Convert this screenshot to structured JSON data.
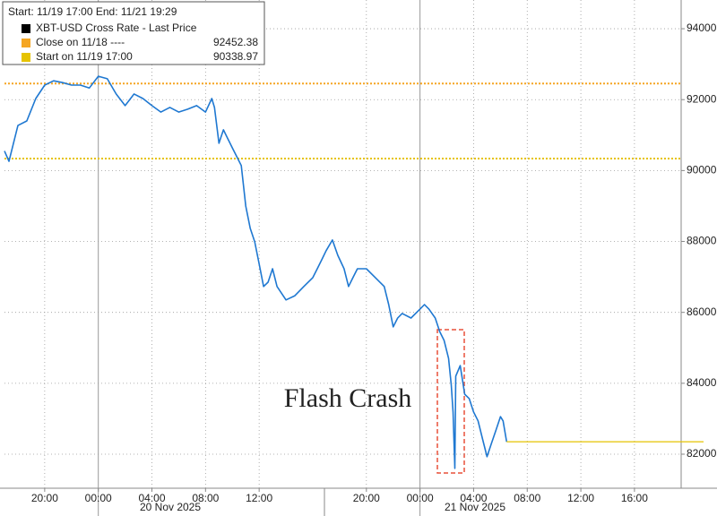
{
  "chart_data": {
    "type": "line",
    "legend": {
      "header": "Start: 11/19 17:00 End: 11/21 19:29",
      "position": "upper left"
    },
    "series": [
      {
        "name": "XBT-USD Cross Rate - Last Price",
        "color": "#1f78d1",
        "x": [
          "2025-11-19T17:00",
          "2025-11-19T17:20",
          "2025-11-19T18:00",
          "2025-11-19T18:40",
          "2025-11-19T19:20",
          "2025-11-19T20:00",
          "2025-11-19T20:40",
          "2025-11-19T21:20",
          "2025-11-19T22:00",
          "2025-11-19T22:40",
          "2025-11-19T23:20",
          "2025-11-20T00:00",
          "2025-11-20T00:40",
          "2025-11-20T01:20",
          "2025-11-20T02:00",
          "2025-11-20T02:40",
          "2025-11-20T03:20",
          "2025-11-20T04:00",
          "2025-11-20T04:40",
          "2025-11-20T05:20",
          "2025-11-20T06:00",
          "2025-11-20T06:40",
          "2025-11-20T07:20",
          "2025-11-20T08:00",
          "2025-11-20T08:28",
          "2025-11-20T08:40",
          "2025-11-20T09:00",
          "2025-11-20T09:20",
          "2025-11-20T09:40",
          "2025-11-20T10:00",
          "2025-11-20T10:20",
          "2025-11-20T10:40",
          "2025-11-20T11:00",
          "2025-11-20T11:20",
          "2025-11-20T11:40",
          "2025-11-20T12:00",
          "2025-11-20T12:20",
          "2025-11-20T12:40",
          "2025-11-20T13:00",
          "2025-11-20T13:20",
          "2025-11-20T14:00",
          "2025-11-20T14:40",
          "2025-11-20T15:20",
          "2025-11-20T16:00",
          "2025-11-20T16:20",
          "2025-11-20T16:40",
          "2025-11-20T17:00",
          "2025-11-20T17:28",
          "2025-11-20T17:52",
          "2025-11-20T18:20",
          "2025-11-20T18:40",
          "2025-11-20T19:00",
          "2025-11-20T19:20",
          "2025-11-20T20:00",
          "2025-11-20T20:40",
          "2025-11-20T21:20",
          "2025-11-20T21:40",
          "2025-11-20T22:00",
          "2025-11-20T22:20",
          "2025-11-20T22:40",
          "2025-11-20T23:20",
          "2025-11-21T00:00",
          "2025-11-21T00:20",
          "2025-11-21T00:40",
          "2025-11-21T01:08",
          "2025-11-21T01:28",
          "2025-11-21T01:48",
          "2025-11-21T02:08",
          "2025-11-21T02:20",
          "2025-11-21T02:28",
          "2025-11-21T02:36",
          "2025-11-21T02:40",
          "2025-11-21T03:00",
          "2025-11-21T03:20",
          "2025-11-21T03:40",
          "2025-11-21T04:00",
          "2025-11-21T04:20",
          "2025-11-21T04:40",
          "2025-11-21T05:00",
          "2025-11-21T05:20",
          "2025-11-21T05:40",
          "2025-11-21T06:00",
          "2025-11-21T06:12",
          "2025-11-21T06:28"
        ],
        "values": [
          90550,
          90260,
          91270,
          91400,
          92030,
          92410,
          92530,
          92480,
          92410,
          92410,
          92330,
          92660,
          92590,
          92160,
          91830,
          92160,
          92030,
          91830,
          91650,
          91780,
          91650,
          91730,
          91830,
          91650,
          92030,
          91780,
          90770,
          91150,
          90890,
          90640,
          90390,
          90140,
          89000,
          88370,
          87990,
          87360,
          86730,
          86850,
          87230,
          86730,
          86350,
          86470,
          86730,
          86980,
          87230,
          87480,
          87740,
          88040,
          87610,
          87230,
          86730,
          86980,
          87230,
          87230,
          86980,
          86730,
          86220,
          85590,
          85840,
          85970,
          85840,
          86090,
          86220,
          86090,
          85840,
          85460,
          85210,
          84700,
          83950,
          83190,
          81600,
          84200,
          84500,
          83690,
          83570,
          83190,
          82940,
          82430,
          81930,
          82310,
          82680,
          83060,
          82940,
          82350
        ]
      }
    ],
    "reference_lines": [
      {
        "name": "Close on 11/18 ----",
        "value": 92452.38,
        "color": "#f5a623"
      },
      {
        "name": "Start on 11/19 17:00",
        "value": 90338.97,
        "color": "#e6c300"
      }
    ],
    "xlim": [
      "2025-11-19T17:00",
      "2025-11-21T19:29"
    ],
    "xticks": [
      {
        "value": "2025-11-19T20:00",
        "label": "20:00"
      },
      {
        "value": "2025-11-20T00:00",
        "label": "00:00"
      },
      {
        "value": "2025-11-20T04:00",
        "label": "04:00"
      },
      {
        "value": "2025-11-20T08:00",
        "label": "08:00"
      },
      {
        "value": "2025-11-20T12:00",
        "label": "12:00"
      },
      {
        "value": "2025-11-20T20:00",
        "label": "20:00"
      },
      {
        "value": "2025-11-21T00:00",
        "label": "00:00"
      },
      {
        "value": "2025-11-21T04:00",
        "label": "04:00"
      },
      {
        "value": "2025-11-21T08:00",
        "label": "08:00"
      },
      {
        "value": "2025-11-21T12:00",
        "label": "12:00"
      },
      {
        "value": "2025-11-21T16:00",
        "label": "16:00"
      }
    ],
    "date_labels": [
      "20 Nov 2025",
      "21 Nov 2025"
    ],
    "ylim": [
      81040,
      94810
    ],
    "yticks": [
      82000,
      84000,
      86000,
      88000,
      90000,
      92000,
      94000
    ],
    "grid": true,
    "annotation": {
      "text": "Flash Crash",
      "color": "#e8503a"
    }
  }
}
